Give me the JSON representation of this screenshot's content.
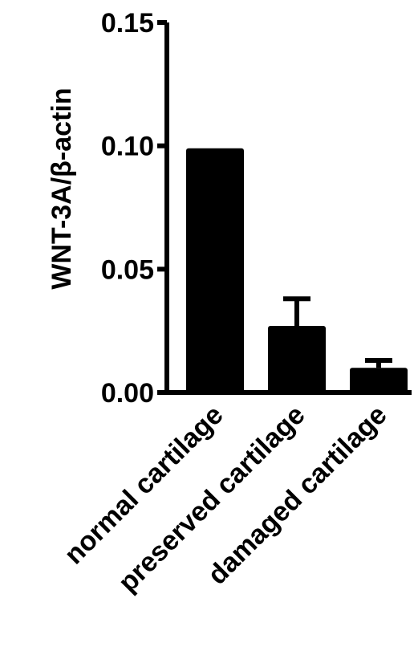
{
  "chart_data": {
    "type": "bar",
    "ylabel": "WNT-3A/β-actin",
    "xlabel": "",
    "ylim": [
      0,
      0.15
    ],
    "yticks": [
      "0.00",
      "0.05",
      "0.10",
      "0.15"
    ],
    "ytick_values": [
      0,
      0.05,
      0.1,
      0.15
    ],
    "categories": [
      "normal cartilage",
      "preserved cartilage",
      "damaged cartilage"
    ],
    "values": [
      0.099,
      0.027,
      0.01
    ],
    "error_upper": [
      0,
      0.011,
      0.003
    ],
    "grid": false,
    "colors": {
      "bar": "#000000",
      "axis": "#000000"
    }
  }
}
